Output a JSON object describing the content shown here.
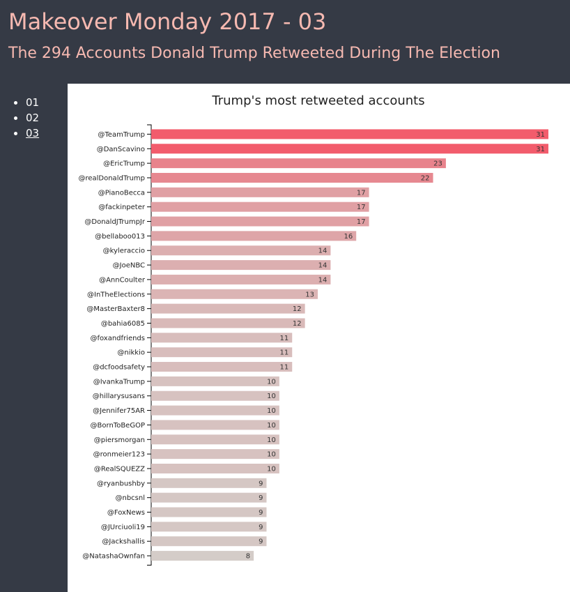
{
  "header": {
    "title": "Makeover Monday 2017 - 03",
    "subtitle": "The 294 Accounts Donald Trump Retweeted During The Election"
  },
  "nav": {
    "items": [
      {
        "label": "01",
        "active": false
      },
      {
        "label": "02",
        "active": false
      },
      {
        "label": "03",
        "active": true
      }
    ]
  },
  "colors": {
    "background": "#353a45",
    "title": "#f6b9b1",
    "bar_max": "#f25c6c",
    "bar_min": "#d4ccc8"
  },
  "chart_data": {
    "type": "bar",
    "orientation": "horizontal",
    "title": "Trump's most retweeted accounts",
    "xlabel": "",
    "ylabel": "",
    "xlim": [
      0,
      31
    ],
    "grid": false,
    "categories": [
      "@TeamTrump",
      "@DanScavino",
      "@EricTrump",
      "@realDonaldTrump",
      "@PianoBecca",
      "@fackinpeter",
      "@DonaldJTrumpJr",
      "@bellaboo013",
      "@kyleraccio",
      "@JoeNBC",
      "@AnnCoulter",
      "@InTheElections",
      "@MasterBaxter8",
      "@bahia6085",
      "@foxandfriends",
      "@nikkio",
      "@dcfoodsafety",
      "@IvankaTrump",
      "@hillarysusans",
      "@Jennifer75AR",
      "@BornToBeGOP",
      "@piersmorgan",
      "@ronmeier123",
      "@RealSQUEZZ",
      "@ryanbushby",
      "@nbcsnl",
      "@FoxNews",
      "@JUrciuoli19",
      "@Jackshallis",
      "@NatashaOwnfan"
    ],
    "values": [
      31,
      31,
      23,
      22,
      17,
      17,
      17,
      16,
      14,
      14,
      14,
      13,
      12,
      12,
      11,
      11,
      11,
      10,
      10,
      10,
      10,
      10,
      10,
      10,
      9,
      9,
      9,
      9,
      9,
      8
    ]
  }
}
